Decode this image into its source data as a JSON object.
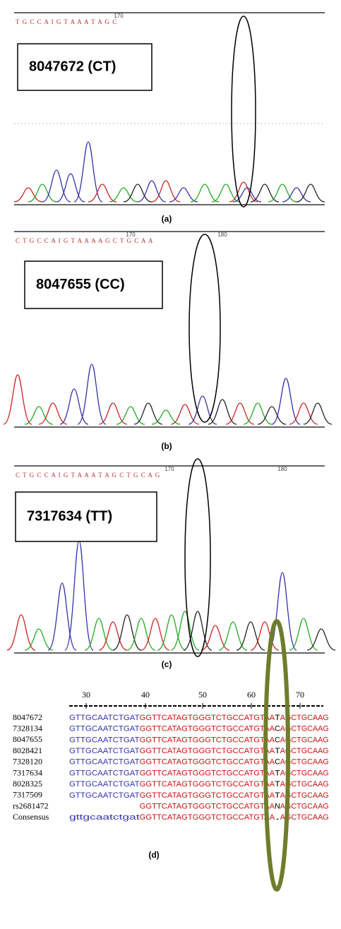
{
  "panels": [
    {
      "label": "(a)",
      "sample": "8047672 (CT)",
      "bases": "T G C C  A I G T A A A T A G C",
      "positions": [
        "170"
      ]
    },
    {
      "label": "(b)",
      "sample": "8047655 (CC)",
      "bases": "C T G C C  A I G T A A  A  A G C T G C  A  A",
      "positions": [
        "170",
        "180"
      ]
    },
    {
      "label": "(c)",
      "sample": "7317634 (TT)",
      "bases": "C T G C C  A I G T A A  A T A G C T G C A G",
      "positions": [
        "170",
        "180"
      ]
    }
  ],
  "alignment": {
    "label": "(d)",
    "positions": [
      "30",
      "40",
      "50",
      "60",
      "70"
    ],
    "rows": [
      {
        "name": "8047672",
        "prefix": "GTTGCAATCTGAT",
        "seq": "GGTTCATAGTGGGTCTGCCATGTAA",
        "site": "T",
        "suffix": "AGCTGCAAG"
      },
      {
        "name": "7328134",
        "prefix": "GTTGCAATCTGAT",
        "seq": "GGTTCATAGTGGGTCTGCCATGTAA",
        "site": "C",
        "suffix": "AGCTGCAAG"
      },
      {
        "name": "8047655",
        "prefix": "GTTGCAATCTGAT",
        "seq": "GGTTCATAGTGGGTCTGCCATGTAA",
        "site": "C",
        "suffix": "AGCTGCAAG"
      },
      {
        "name": "8028421",
        "prefix": "GTTGCAATCTGAT",
        "seq": "GGTTCATAGTGGGTCTGCCATGTAA",
        "site": "T",
        "suffix": "AGCTGCAAG"
      },
      {
        "name": "7328120",
        "prefix": "GTTGCAATCTGAT",
        "seq": "GGTTCATAGTGGGTCTGCCATGTAA",
        "site": "C",
        "suffix": "AGCTGCAAG"
      },
      {
        "name": "7317634",
        "prefix": "GTTGCAATCTGAT",
        "seq": "GGTTCATAGTGGGTCTGCCATGTAA",
        "site": "T",
        "suffix": "AGCTGCAAG"
      },
      {
        "name": "8028325",
        "prefix": "GTTGCAATCTGAT",
        "seq": "GGTTCATAGTGGGTCTGCCATGTAA",
        "site": "T",
        "suffix": "AGCTGCAAG"
      },
      {
        "name": "7317509",
        "prefix": "GTTGCAATCTGAT",
        "seq": "GGTTCATAGTGGGTCTGCCATGTAA",
        "site": "T",
        "suffix": "AGCTGCAAG"
      },
      {
        "name": "rs2681472",
        "seq": "GGTTCATAGTGGGTCTGCCATGTAA",
        "site": "N",
        "suffix": "AGCTGCAAG"
      },
      {
        "name": "Consensus",
        "prefix": "gttgcaatctgat",
        "seq": "GGTTCATAGTGGGTCTGCCATGTAA",
        "site": ".",
        "suffix": "AGCTGCAAG"
      }
    ]
  }
}
